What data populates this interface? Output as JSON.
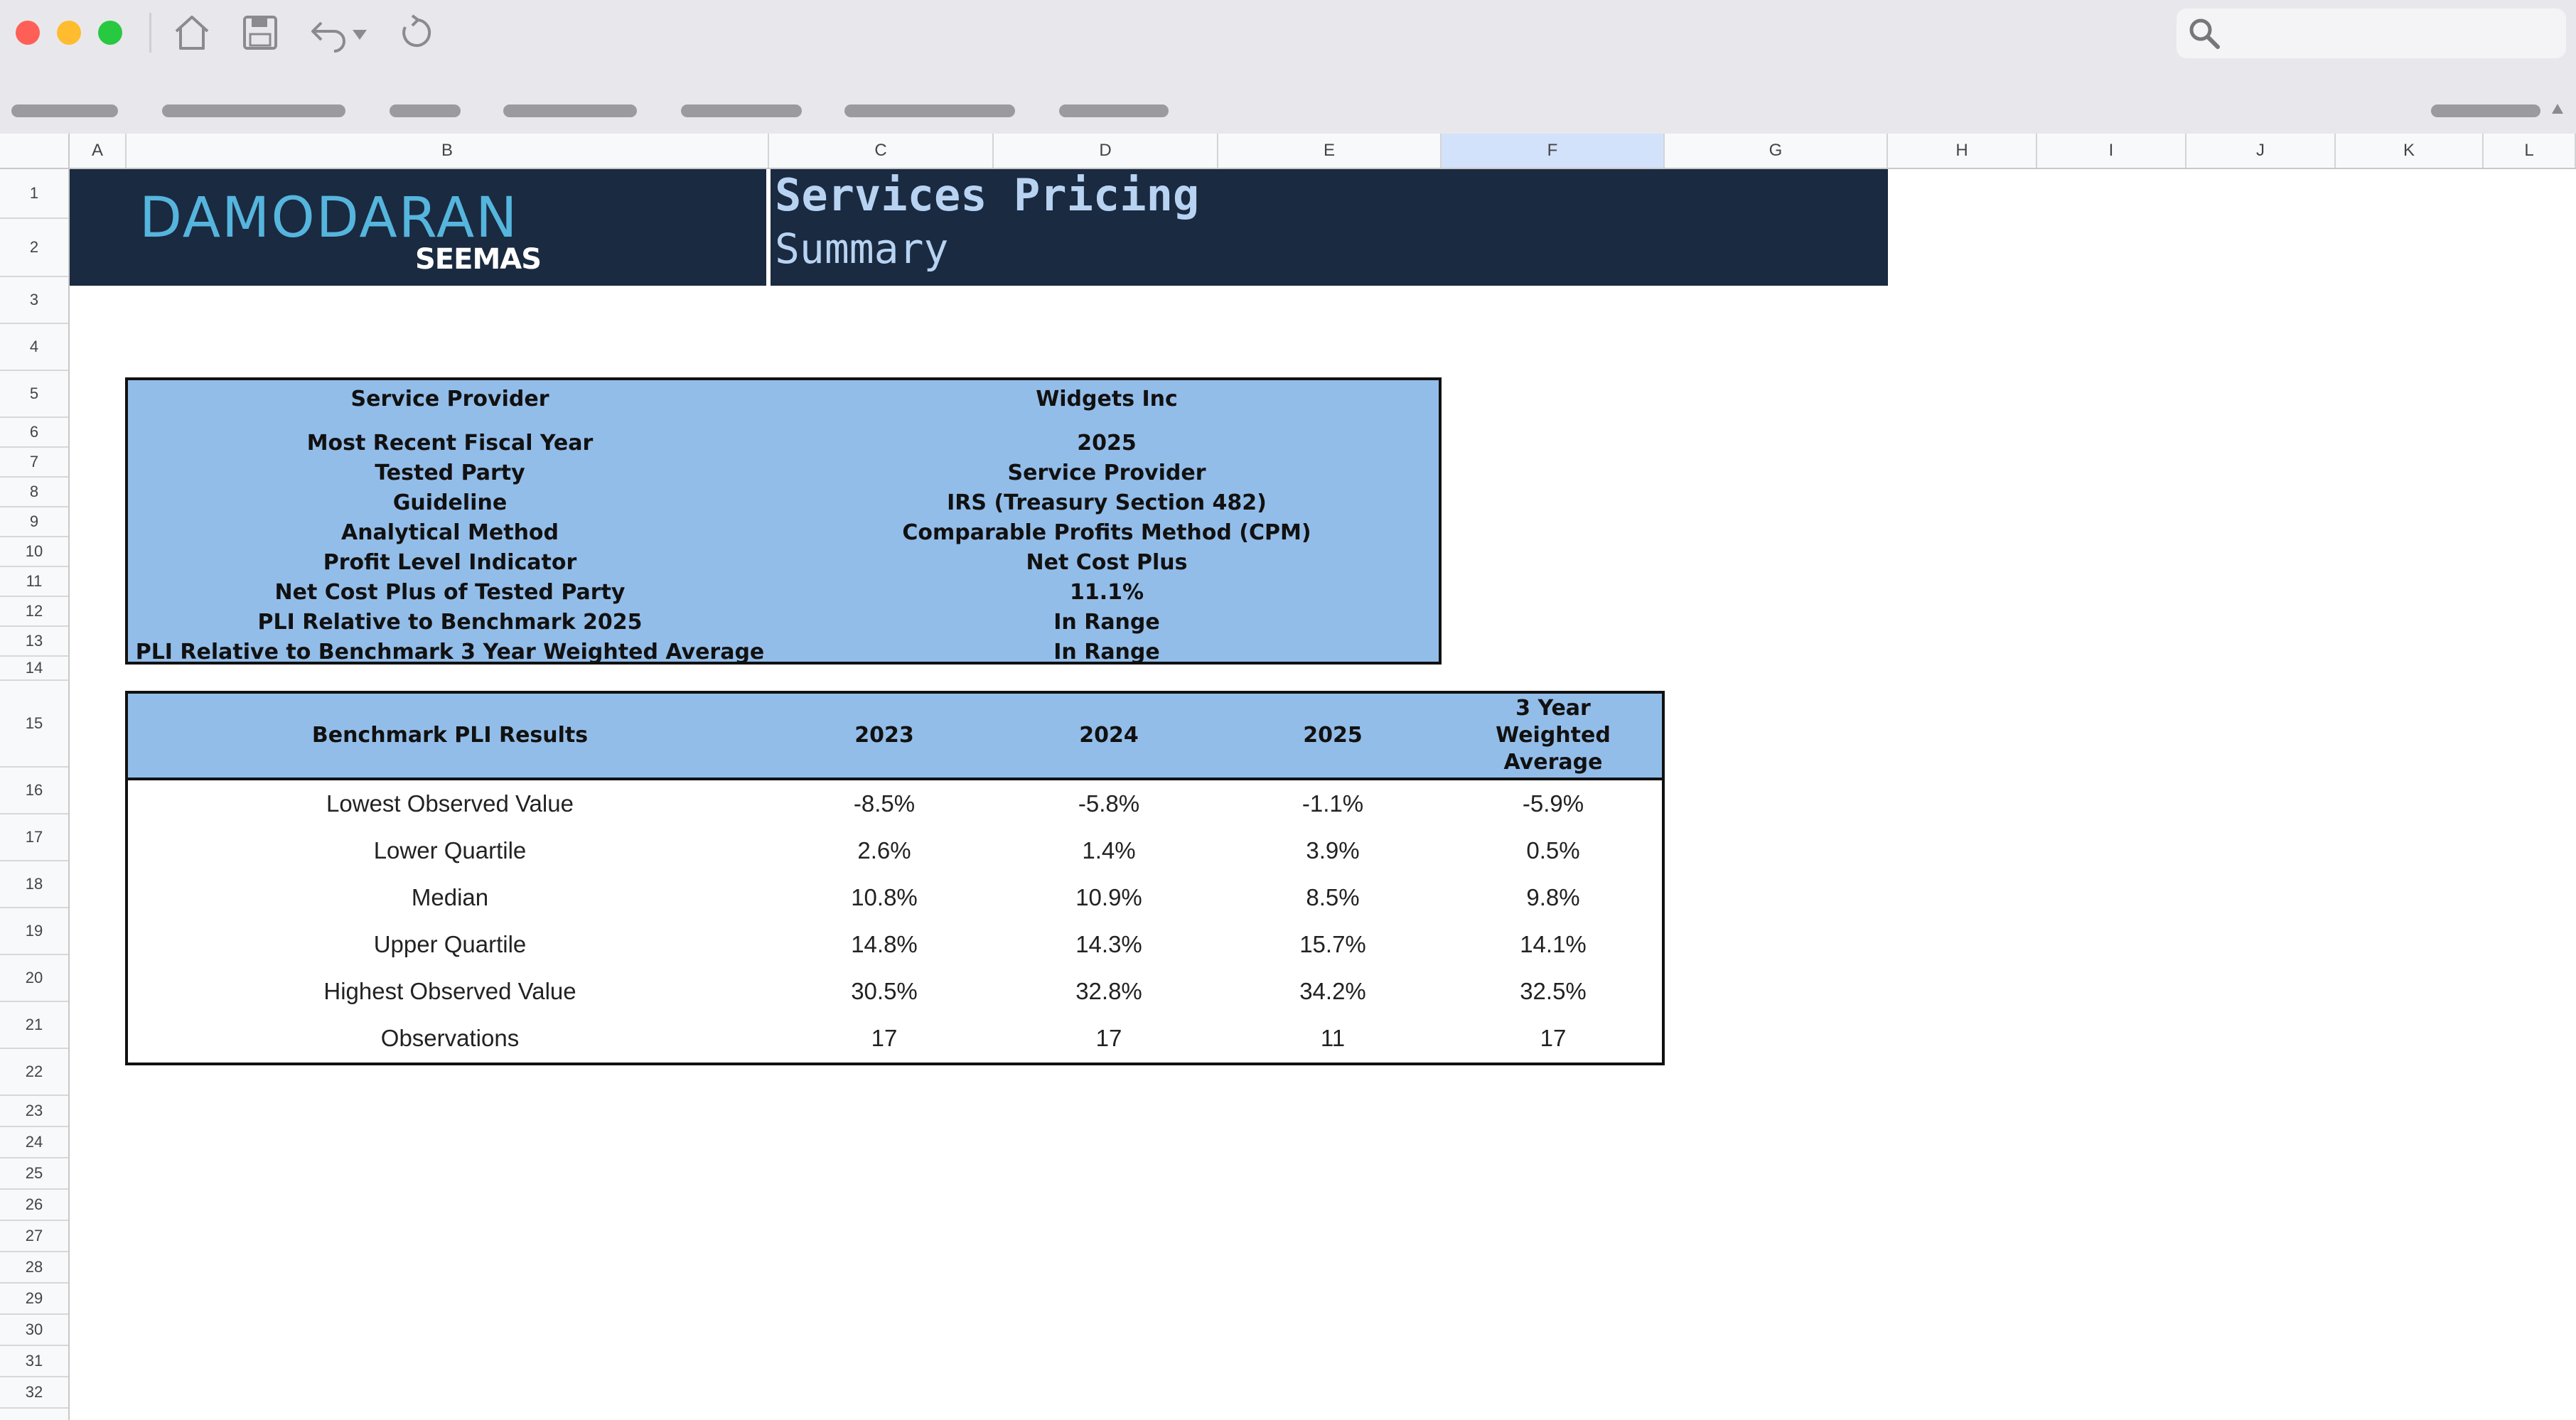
{
  "window": {
    "buttons": [
      "close",
      "minimize",
      "maximize"
    ],
    "colors": {
      "close": "#ff5f57",
      "minimize": "#febc2e",
      "maximize": "#28c840"
    },
    "toolbar_icons": [
      "home-icon",
      "save-icon",
      "undo-icon",
      "dropdown-caret-icon",
      "refresh-icon",
      "search-icon"
    ]
  },
  "sheet": {
    "columns": [
      "A",
      "B",
      "C",
      "D",
      "E",
      "F",
      "G",
      "H",
      "I",
      "J",
      "K",
      "L"
    ],
    "selected_column": "F",
    "rows": [
      "1",
      "2",
      "3",
      "4",
      "5",
      "6",
      "7",
      "8",
      "9",
      "10",
      "11",
      "12",
      "13",
      "14",
      "15",
      "16",
      "17",
      "18",
      "19",
      "20",
      "21",
      "22",
      "23",
      "24",
      "25",
      "26",
      "27",
      "28",
      "29",
      "30",
      "31",
      "32"
    ]
  },
  "banner": {
    "logo_main": "DAMODARAN",
    "logo_sub": "SEEMAS",
    "title": "Services Pricing",
    "subtitle": "Summary",
    "bg_color": "#1a2a40",
    "title_color": "#b8d3f2",
    "logo_color": "#55b5dd"
  },
  "summary": {
    "rows": [
      {
        "label": "Service Provider",
        "value": "Widgets Inc"
      },
      {
        "label": "Most Recent Fiscal Year",
        "value": "2025"
      },
      {
        "label": "Tested Party",
        "value": "Service Provider"
      },
      {
        "label": "Guideline",
        "value": "IRS (Treasury Section 482)"
      },
      {
        "label": "Analytical Method",
        "value": "Comparable Profits Method (CPM)"
      },
      {
        "label": "Profit Level Indicator",
        "value": "Net Cost Plus"
      },
      {
        "label": "Net Cost Plus of Tested Party",
        "value": "11.1%"
      },
      {
        "label": "PLI Relative to Benchmark 2025",
        "value": "In Range"
      },
      {
        "label": "PLI Relative to Benchmark 3 Year Weighted Average",
        "value": "In Range"
      }
    ],
    "fill_color": "#93bde9"
  },
  "benchmark": {
    "headers": [
      "Benchmark PLI Results",
      "2023",
      "2024",
      "2025",
      "3 Year Weighted Average"
    ],
    "rows": [
      {
        "label": "Lowest Observed Value",
        "values": [
          "-8.5%",
          "-5.8%",
          "-1.1%",
          "-5.9%"
        ]
      },
      {
        "label": "Lower Quartile",
        "values": [
          "2.6%",
          "1.4%",
          "3.9%",
          "0.5%"
        ]
      },
      {
        "label": "Median",
        "values": [
          "10.8%",
          "10.9%",
          "8.5%",
          "9.8%"
        ]
      },
      {
        "label": "Upper Quartile",
        "values": [
          "14.8%",
          "14.3%",
          "15.7%",
          "14.1%"
        ]
      },
      {
        "label": "Highest Observed Value",
        "values": [
          "30.5%",
          "32.8%",
          "34.2%",
          "32.5%"
        ]
      },
      {
        "label": "Observations",
        "values": [
          "17",
          "17",
          "11",
          "17"
        ]
      }
    ]
  }
}
